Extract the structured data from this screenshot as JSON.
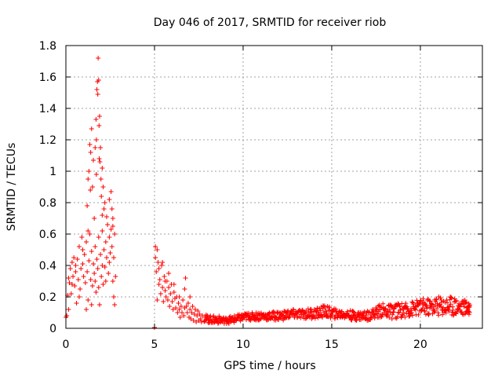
{
  "chart_data": {
    "type": "scatter",
    "title": "Day 046 of 2017, SRMTID for receiver riob",
    "xlabel": "GPS time / hours",
    "ylabel": "SRMTID / TECUs",
    "xlim": [
      0,
      23.5
    ],
    "ylim": [
      0,
      1.8
    ],
    "xticks": [
      0,
      5,
      10,
      15,
      20
    ],
    "yticks": [
      0,
      0.2,
      0.4,
      0.6,
      0.8,
      1,
      1.2,
      1.4,
      1.6,
      1.8
    ],
    "xtick_labels": [
      "0",
      "5",
      "10",
      "15",
      "20"
    ],
    "ytick_labels": [
      "0",
      "0.2",
      "0.4",
      "0.6",
      "0.8",
      "1",
      "1.2",
      "1.4",
      "1.6",
      "1.8"
    ],
    "grid": true,
    "marker": "+",
    "color": "#ff0000",
    "series": [
      {
        "name": "SRMTID",
        "points": [
          [
            0.0,
            0.07
          ],
          [
            0.05,
            0.08
          ],
          [
            0.1,
            0.21
          ],
          [
            0.15,
            0.32
          ],
          [
            0.2,
            0.29
          ],
          [
            0.25,
            0.38
          ],
          [
            0.3,
            0.22
          ],
          [
            0.35,
            0.42
          ],
          [
            0.4,
            0.33
          ],
          [
            0.45,
            0.45
          ],
          [
            0.5,
            0.27
          ],
          [
            0.55,
            0.36
          ],
          [
            0.6,
            0.16
          ],
          [
            0.65,
            0.44
          ],
          [
            0.7,
            0.31
          ],
          [
            0.75,
            0.52
          ],
          [
            0.8,
            0.25
          ],
          [
            0.85,
            0.38
          ],
          [
            0.9,
            0.58
          ],
          [
            0.95,
            0.41
          ],
          [
            1.0,
            0.33
          ],
          [
            1.05,
            0.47
          ],
          [
            1.1,
            0.29
          ],
          [
            1.15,
            0.55
          ],
          [
            1.2,
            0.36
          ],
          [
            1.25,
            0.18
          ],
          [
            1.3,
            0.43
          ],
          [
            1.35,
            0.6
          ],
          [
            1.4,
            0.31
          ],
          [
            1.45,
            0.49
          ],
          [
            1.5,
            0.27
          ],
          [
            1.55,
            0.41
          ],
          [
            1.6,
            0.35
          ],
          [
            1.65,
            0.52
          ],
          [
            1.7,
            0.23
          ],
          [
            1.75,
            0.44
          ],
          [
            1.8,
            0.38
          ],
          [
            1.85,
            0.58
          ],
          [
            1.9,
            0.15
          ],
          [
            1.95,
            0.47
          ],
          [
            2.0,
            0.33
          ],
          [
            2.05,
            0.62
          ],
          [
            2.1,
            0.28
          ],
          [
            2.15,
            0.5
          ],
          [
            2.2,
            0.39
          ],
          [
            2.25,
            0.55
          ],
          [
            2.3,
            0.45
          ],
          [
            2.35,
            0.66
          ],
          [
            2.4,
            0.35
          ],
          [
            2.45,
            0.58
          ],
          [
            2.5,
            0.48
          ],
          [
            2.55,
            0.63
          ],
          [
            2.6,
            0.52
          ],
          [
            2.65,
            0.7
          ],
          [
            2.7,
            0.45
          ],
          [
            2.75,
            0.6
          ],
          [
            2.8,
            0.33
          ],
          [
            0.15,
            0.12
          ],
          [
            0.35,
            0.28
          ],
          [
            0.55,
            0.4
          ],
          [
            0.75,
            0.2
          ],
          [
            0.95,
            0.5
          ],
          [
            1.15,
            0.12
          ],
          [
            1.25,
            0.62
          ],
          [
            1.45,
            0.15
          ],
          [
            1.65,
            0.3
          ],
          [
            1.85,
            0.26
          ],
          [
            2.05,
            0.4
          ],
          [
            2.25,
            0.3
          ],
          [
            2.45,
            0.42
          ],
          [
            2.65,
            0.3
          ],
          [
            2.7,
            0.2
          ],
          [
            2.75,
            0.15
          ],
          [
            1.2,
            0.78
          ],
          [
            1.25,
            0.95
          ],
          [
            1.3,
            1.0
          ],
          [
            1.35,
            1.17
          ],
          [
            1.38,
            0.88
          ],
          [
            1.4,
            1.12
          ],
          [
            1.45,
            1.27
          ],
          [
            1.5,
            0.9
          ],
          [
            1.55,
            1.07
          ],
          [
            1.6,
            0.7
          ],
          [
            1.65,
            1.15
          ],
          [
            1.7,
            1.33
          ],
          [
            1.72,
            1.2
          ],
          [
            1.75,
            1.52
          ],
          [
            1.78,
            1.57
          ],
          [
            1.8,
            1.49
          ],
          [
            1.82,
            1.72
          ],
          [
            1.85,
            1.58
          ],
          [
            1.87,
            1.29
          ],
          [
            1.9,
            1.35
          ],
          [
            1.92,
            1.06
          ],
          [
            1.95,
            1.15
          ],
          [
            1.98,
            0.95
          ],
          [
            2.0,
            0.84
          ],
          [
            2.05,
            1.02
          ],
          [
            2.1,
            0.9
          ],
          [
            2.15,
            0.76
          ],
          [
            2.2,
            0.8
          ],
          [
            2.3,
            0.71
          ],
          [
            2.45,
            0.82
          ],
          [
            2.55,
            0.87
          ],
          [
            2.6,
            0.76
          ],
          [
            2.65,
            0.65
          ],
          [
            2.05,
            0.72
          ],
          [
            1.88,
            1.08
          ],
          [
            1.72,
            0.98
          ],
          [
            5.0,
            0.005
          ],
          [
            5.05,
            0.52
          ],
          [
            5.1,
            0.36
          ],
          [
            5.15,
            0.18
          ],
          [
            5.2,
            0.42
          ],
          [
            5.25,
            0.28
          ],
          [
            5.3,
            0.31
          ],
          [
            5.35,
            0.22
          ],
          [
            5.4,
            0.4
          ],
          [
            5.45,
            0.26
          ],
          [
            5.5,
            0.17
          ],
          [
            5.55,
            0.33
          ],
          [
            5.6,
            0.24
          ],
          [
            5.65,
            0.2
          ],
          [
            5.7,
            0.3
          ],
          [
            5.75,
            0.18
          ],
          [
            5.8,
            0.26
          ],
          [
            5.85,
            0.14
          ],
          [
            5.9,
            0.22
          ],
          [
            5.95,
            0.28
          ],
          [
            6.0,
            0.17
          ],
          [
            6.05,
            0.12
          ],
          [
            6.1,
            0.23
          ],
          [
            6.15,
            0.19
          ],
          [
            6.2,
            0.13
          ],
          [
            6.25,
            0.2
          ],
          [
            6.3,
            0.1
          ],
          [
            6.35,
            0.16
          ],
          [
            6.4,
            0.12
          ],
          [
            6.45,
            0.07
          ],
          [
            6.5,
            0.14
          ],
          [
            6.55,
            0.1
          ],
          [
            6.6,
            0.18
          ],
          [
            6.65,
            0.08
          ],
          [
            6.7,
            0.13
          ],
          [
            6.75,
            0.32
          ],
          [
            6.8,
            0.14
          ],
          [
            6.85,
            0.1
          ],
          [
            6.9,
            0.16
          ],
          [
            6.95,
            0.07
          ],
          [
            7.0,
            0.12
          ],
          [
            7.05,
            0.06
          ],
          [
            7.1,
            0.1
          ],
          [
            7.15,
            0.14
          ],
          [
            7.2,
            0.05
          ],
          [
            7.25,
            0.09
          ],
          [
            7.3,
            0.12
          ],
          [
            7.35,
            0.04
          ],
          [
            7.4,
            0.08
          ],
          [
            7.45,
            0.11
          ],
          [
            7.5,
            0.05
          ],
          [
            7.55,
            0.09
          ],
          [
            7.6,
            0.06
          ],
          [
            7.65,
            0.04
          ],
          [
            7.7,
            0.08
          ],
          [
            5.05,
            0.45
          ],
          [
            5.15,
            0.5
          ],
          [
            5.25,
            0.38
          ],
          [
            5.45,
            0.42
          ],
          [
            5.6,
            0.3
          ],
          [
            5.8,
            0.35
          ],
          [
            6.1,
            0.28
          ],
          [
            6.4,
            0.2
          ],
          [
            6.7,
            0.25
          ],
          [
            7.0,
            0.2
          ]
        ],
        "envelope": [
          [
            7.8,
            0.04,
            0.09
          ],
          [
            8.2,
            0.03,
            0.08
          ],
          [
            8.6,
            0.03,
            0.08
          ],
          [
            9.0,
            0.03,
            0.07
          ],
          [
            9.4,
            0.03,
            0.08
          ],
          [
            9.8,
            0.04,
            0.09
          ],
          [
            10.2,
            0.05,
            0.1
          ],
          [
            10.6,
            0.05,
            0.1
          ],
          [
            11.0,
            0.05,
            0.11
          ],
          [
            11.4,
            0.05,
            0.1
          ],
          [
            11.8,
            0.05,
            0.11
          ],
          [
            12.2,
            0.05,
            0.11
          ],
          [
            12.6,
            0.06,
            0.12
          ],
          [
            13.0,
            0.06,
            0.12
          ],
          [
            13.4,
            0.06,
            0.12
          ],
          [
            13.8,
            0.06,
            0.13
          ],
          [
            14.2,
            0.06,
            0.13
          ],
          [
            14.6,
            0.07,
            0.15
          ],
          [
            15.0,
            0.06,
            0.13
          ],
          [
            15.4,
            0.06,
            0.12
          ],
          [
            15.8,
            0.06,
            0.12
          ],
          [
            16.2,
            0.05,
            0.11
          ],
          [
            16.6,
            0.05,
            0.11
          ],
          [
            17.0,
            0.05,
            0.11
          ],
          [
            17.4,
            0.06,
            0.13
          ],
          [
            17.8,
            0.07,
            0.16
          ],
          [
            18.2,
            0.06,
            0.15
          ],
          [
            18.6,
            0.06,
            0.16
          ],
          [
            19.0,
            0.07,
            0.16
          ],
          [
            19.4,
            0.07,
            0.17
          ],
          [
            19.8,
            0.08,
            0.18
          ],
          [
            20.2,
            0.08,
            0.19
          ],
          [
            20.6,
            0.08,
            0.19
          ],
          [
            21.0,
            0.08,
            0.21
          ],
          [
            21.4,
            0.08,
            0.2
          ],
          [
            21.8,
            0.08,
            0.21
          ],
          [
            22.2,
            0.08,
            0.19
          ],
          [
            22.6,
            0.08,
            0.18
          ],
          [
            22.8,
            0.09,
            0.17
          ]
        ]
      }
    ]
  }
}
